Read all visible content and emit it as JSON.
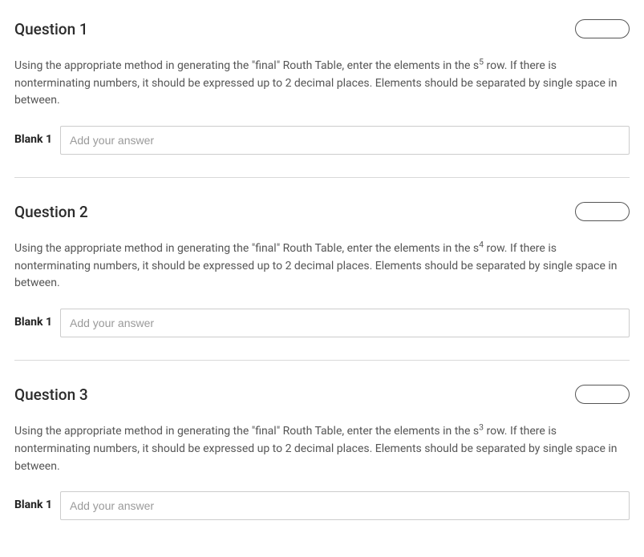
{
  "questions": [
    {
      "title": "Question 1",
      "text_before": "Using the appropriate method in generating the \"final\" Routh Table, enter the elements in the s",
      "exponent": "5",
      "text_after": " row. If there is nonterminating numbers, it should be expressed up to 2 decimal places. Elements should be separated by single space in between.",
      "blank_label": "Blank 1",
      "placeholder": "Add your answer",
      "value": ""
    },
    {
      "title": "Question 2",
      "text_before": "Using the appropriate method in generating the \"final\" Routh Table, enter the elements in the s",
      "exponent": "4",
      "text_after": " row. If there is nonterminating numbers, it should be expressed up to 2 decimal places. Elements should be separated by single space in between.",
      "blank_label": "Blank 1",
      "placeholder": "Add your answer",
      "value": ""
    },
    {
      "title": "Question 3",
      "text_before": "Using the appropriate method in generating the \"final\" Routh Table, enter the elements in the s",
      "exponent": "3",
      "text_after": " row. If there is nonterminating numbers, it should be expressed up to 2 decimal places. Elements should be separated by single space in between.",
      "blank_label": "Blank 1",
      "placeholder": "Add your answer",
      "value": ""
    }
  ],
  "colors": {
    "text_primary": "#2b2b2b",
    "text_body": "#555555",
    "border_input": "#cccccc",
    "border_divider": "#d9d9d9",
    "placeholder": "#9a9a9a",
    "pill_border": "#555555",
    "background": "#ffffff"
  }
}
